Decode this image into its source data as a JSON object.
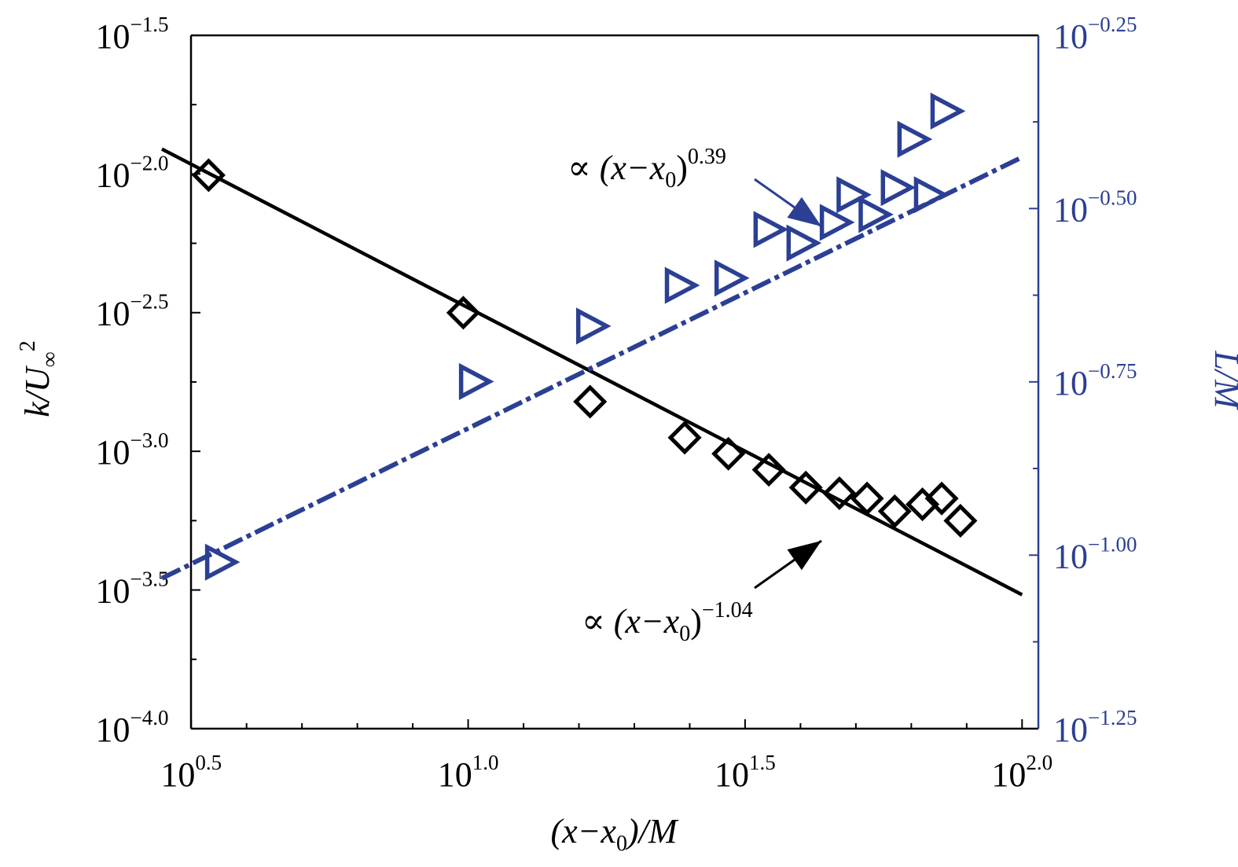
{
  "colors": {
    "left_series": "#000000",
    "right_series": "#2b3f93",
    "right_axis": "#2b3f93"
  },
  "chart_data": {
    "type": "scatter",
    "x_scale": "log10",
    "y_scale": "log10",
    "x_label": {
      "pre": "(x−x",
      "sub": "0",
      "post": ")/M"
    },
    "left_ylabel": {
      "base": "k/U",
      "sub": "∞",
      "sup": "2"
    },
    "right_ylabel": "L/M",
    "xlim": [
      3.16,
      107.0
    ],
    "left_ylim": [
      0.0001,
      0.0316
    ],
    "right_ylim": [
      0.0562,
      0.562
    ],
    "x_ticks": [
      {
        "base": "10",
        "exp": "0.5",
        "value": 3.162
      },
      {
        "base": "10",
        "exp": "1.0",
        "value": 10
      },
      {
        "base": "10",
        "exp": "1.5",
        "value": 31.62
      },
      {
        "base": "10",
        "exp": "2.0",
        "value": 100
      }
    ],
    "left_y_ticks": [
      {
        "base": "10",
        "exp": "−1.5",
        "value": 0.03162
      },
      {
        "base": "10",
        "exp": "−2.0",
        "value": 0.01
      },
      {
        "base": "10",
        "exp": "−2.5",
        "value": 0.003162
      },
      {
        "base": "10",
        "exp": "−3.0",
        "value": 0.001
      },
      {
        "base": "10",
        "exp": "−3.5",
        "value": 0.0003162
      },
      {
        "base": "10",
        "exp": "−4.0",
        "value": 0.0001
      }
    ],
    "right_y_ticks": [
      {
        "base": "10",
        "exp": "−0.25",
        "value": 0.5623
      },
      {
        "base": "10",
        "exp": "−0.50",
        "value": 0.3162
      },
      {
        "base": "10",
        "exp": "−0.75",
        "value": 0.1778
      },
      {
        "base": "10",
        "exp": "−1.00",
        "value": 0.1
      },
      {
        "base": "10",
        "exp": "−1.25",
        "value": 0.05623
      }
    ],
    "series": [
      {
        "axis": "left",
        "marker": "diamond",
        "x": [
          3.4,
          9.8,
          16.6,
          24.6,
          29.5,
          34.9,
          40.7,
          46.8,
          52.5,
          58.9,
          66.1,
          71.6,
          77.4
        ],
        "y": [
          0.0099,
          0.00316,
          0.00151,
          0.00112,
          0.00098,
          0.000858,
          0.00074,
          0.000706,
          0.000676,
          0.000608,
          0.000644,
          0.000676,
          0.000562
        ]
      },
      {
        "axis": "right",
        "marker": "triangle-right",
        "x": [
          3.55,
          10.2,
          16.6,
          24.0,
          29.5,
          34.7,
          39.8,
          45.7,
          49.0,
          53.7,
          58.9,
          63.1,
          67.6,
          72.4
        ],
        "y": [
          0.0977,
          0.178,
          0.214,
          0.245,
          0.251,
          0.295,
          0.282,
          0.302,
          0.331,
          0.31,
          0.339,
          0.398,
          0.331,
          0.437
        ]
      }
    ],
    "fit_lines": [
      {
        "axis": "left",
        "style": "solid",
        "label": {
          "pre": "∝ (x−x",
          "sub": "0",
          "post": ")",
          "sup": "−1.04"
        },
        "x": [
          2.8,
          100
        ],
        "y": [
          0.0123,
          0.000304
        ]
      },
      {
        "axis": "right",
        "style": "dashdot",
        "label": {
          "pre": "∝ (x−x",
          "sub": "0",
          "post": ")",
          "sup": "0.39"
        },
        "x": [
          2.8,
          100
        ],
        "y": [
          0.0926,
          0.375
        ]
      }
    ]
  }
}
